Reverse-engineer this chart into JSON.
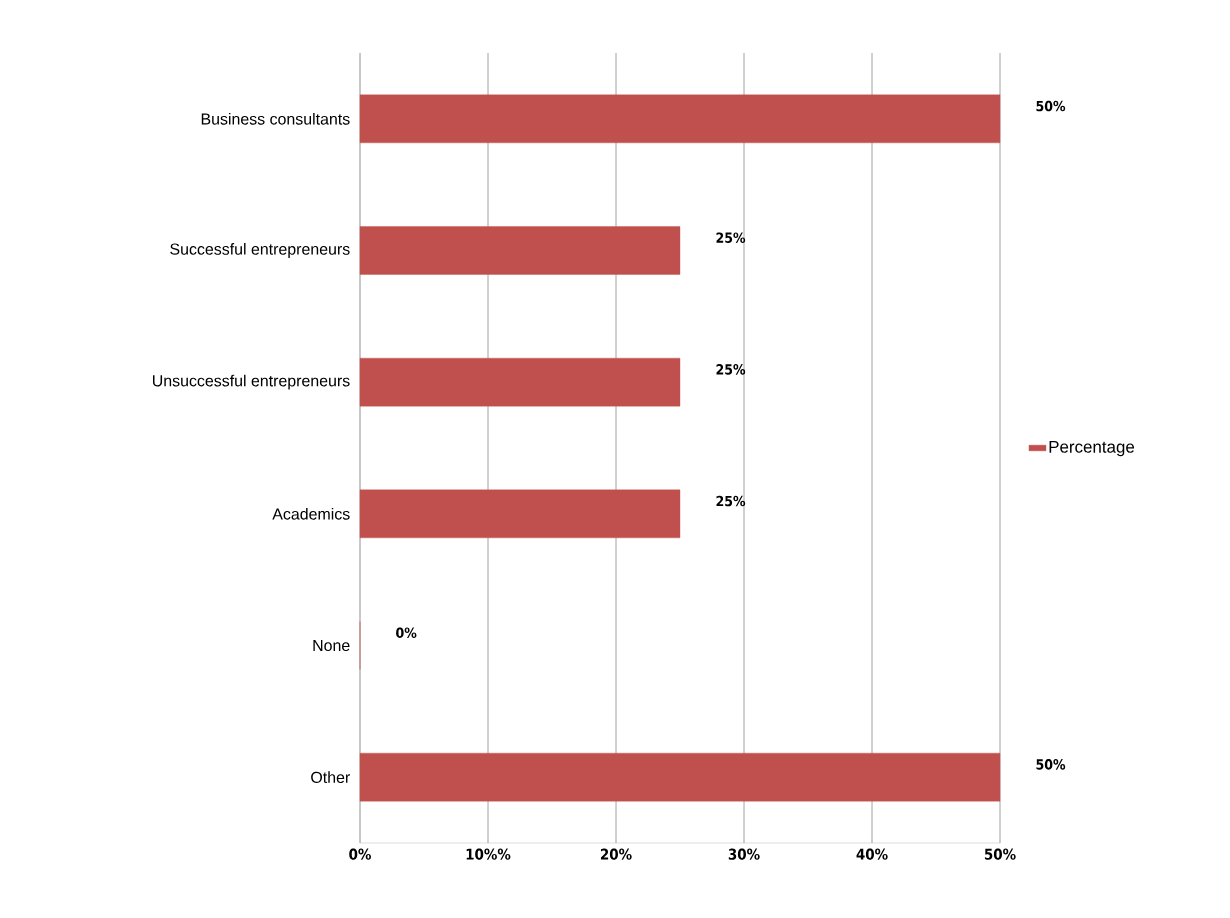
{
  "chart_data": {
    "type": "bar",
    "orientation": "horizontal",
    "categories": [
      "Business consultants",
      "Successful entrepreneurs",
      "Unsuccessful entrepreneurs",
      "Academics",
      "None",
      "Other"
    ],
    "series": [
      {
        "name": "Percentage",
        "color": "#c0504d",
        "values": [
          50,
          25,
          25,
          25,
          0,
          50
        ],
        "value_labels": [
          "50%",
          "25%",
          "25%",
          "25%",
          "0%",
          "50%"
        ]
      }
    ],
    "xlim": [
      0,
      50
    ],
    "xticks": [
      {
        "value": 0,
        "label": "0%"
      },
      {
        "value": 10,
        "label": "10%%"
      },
      {
        "value": 20,
        "label": "20%"
      },
      {
        "value": 30,
        "label": "30%"
      },
      {
        "value": 40,
        "label": "40%"
      },
      {
        "value": 50,
        "label": "50%"
      }
    ],
    "grid": "x",
    "legend": "right"
  }
}
